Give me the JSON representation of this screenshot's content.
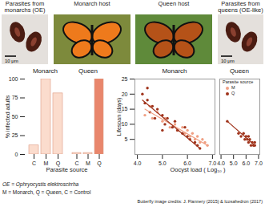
{
  "images": [
    {
      "title": "Parasites from monarchs (OE)",
      "scale_bar": "10 μm"
    },
    {
      "title": "Monarch host"
    },
    {
      "title": "Queen host"
    },
    {
      "title": "Parasites from queens (OE-like)",
      "scale_bar": "10 μm"
    }
  ],
  "chart_data": [
    {
      "type": "bar",
      "title": "Monarch",
      "categories": [
        "C",
        "M",
        "Q"
      ],
      "values": [
        12,
        100,
        81
      ],
      "colors": [
        "#fbdccd",
        "#fbdccd",
        "#fbdccd"
      ],
      "ylim": [
        0,
        100
      ],
      "yticks": [
        0,
        25,
        50,
        75,
        100
      ],
      "ylabel": "% infected adults",
      "xlabel": "Parasite source"
    },
    {
      "type": "bar",
      "title": "Queen",
      "categories": [
        "C",
        "M",
        "Q"
      ],
      "values": [
        2,
        2,
        100
      ],
      "colors": [
        "#fbdccd",
        "#fbdccd",
        "#e9866c"
      ],
      "ylim": [
        0,
        100
      ],
      "tick_labels": "x"
    },
    {
      "type": "scatter",
      "title": "Monarch",
      "xlabel": "Oocyst load ( Log₁₀ )",
      "ylabel": "Lifespan (days)",
      "xlim": [
        3.9,
        7.1
      ],
      "xticks": [
        4,
        5,
        6,
        7
      ],
      "ylim": [
        0,
        25
      ],
      "yticks": [
        5,
        10,
        15,
        20,
        25
      ],
      "legend": "top-right",
      "legend_title": "Parasite source",
      "series": [
        {
          "name": "M",
          "color": "#f0a084",
          "x": [
            4.3,
            4.5,
            4.6,
            4.8,
            5.0,
            5.1,
            5.3,
            5.5,
            5.6,
            5.8,
            5.9,
            6.0,
            6.1,
            6.2,
            6.3,
            6.4,
            6.5,
            6.6,
            6.7,
            6.8
          ],
          "y": [
            13,
            16,
            12,
            14,
            11,
            12,
            9,
            10,
            8,
            9,
            7,
            8,
            6,
            7,
            5,
            6,
            4,
            5,
            4,
            3
          ],
          "fit": {
            "x": [
              4.3,
              6.8
            ],
            "y": [
              15,
              3
            ]
          }
        },
        {
          "name": "Q",
          "color": "#a0341c",
          "x": [
            4.2,
            4.3,
            4.4,
            4.5,
            4.6,
            4.7,
            4.8,
            5.0,
            5.1,
            5.2,
            5.4,
            5.5,
            5.6,
            5.8,
            5.9,
            6.0,
            6.1,
            6.3,
            6.4,
            6.5,
            4.4,
            5.0
          ],
          "y": [
            20,
            17,
            18,
            14,
            16,
            12,
            15,
            13,
            10,
            12,
            9,
            11,
            8,
            7,
            9,
            6,
            5,
            4,
            3,
            2,
            22,
            8
          ],
          "fit": {
            "x": [
              4.2,
              6.5
            ],
            "y": [
              18,
              2
            ]
          }
        }
      ]
    },
    {
      "type": "scatter",
      "title": "Queen",
      "xlim": [
        3.9,
        7.1
      ],
      "xticks": [
        4,
        5,
        6,
        7
      ],
      "ylim": [
        0,
        25
      ],
      "tick_labels": "x",
      "series": [
        {
          "name": "Q",
          "color": "#a0341c",
          "x": [
            4.5,
            5.4,
            5.6,
            5.8,
            5.9,
            6.0,
            6.1,
            6.2,
            6.2,
            6.3,
            6.4,
            6.5,
            6.6,
            6.7,
            6.7
          ],
          "y": [
            11,
            7,
            6,
            7,
            5,
            6,
            5,
            4,
            6,
            5,
            3,
            4,
            3,
            3,
            4
          ],
          "fit": {
            "x": [
              4.5,
              6.7
            ],
            "y": [
              11,
              3
            ]
          }
        }
      ]
    }
  ],
  "notes": [
    "OE = Ophryocystis elektroscirrha",
    "M = Monarch, Q = Queen, C = Control"
  ],
  "credits": "Butterfly image credits: J. Flannery (2015) & Icosahedron (2017)"
}
